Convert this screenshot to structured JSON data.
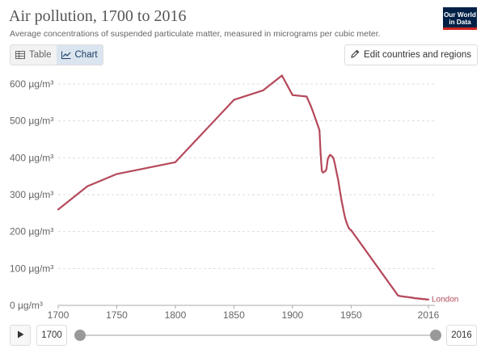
{
  "header": {
    "title": "Air pollution, 1700 to 2016",
    "subtitle": "Average concentrations of suspended particulate matter, measured in micrograms per cubic meter.",
    "logo_line1": "Our World",
    "logo_line2": "in Data"
  },
  "tabs": [
    {
      "label": "Table",
      "icon": "table-icon",
      "active": false
    },
    {
      "label": "Chart",
      "icon": "line-chart-icon",
      "active": true
    }
  ],
  "edit_button": {
    "label": "Edit countries and regions",
    "icon": "pencil-icon"
  },
  "timeline": {
    "start_year": "1700",
    "end_year": "2016",
    "play_icon": "play-icon"
  },
  "colors": {
    "series": "#b5495b",
    "grid": "#dddddd",
    "axis_text": "#666666"
  },
  "chart_data": {
    "type": "line",
    "title": "Air pollution, 1700 to 2016",
    "xlabel": "",
    "ylabel": "",
    "xlim": [
      1700,
      2016
    ],
    "ylim": [
      0,
      600
    ],
    "y_ticks": [
      {
        "value": 0,
        "label": "0 µg/m³"
      },
      {
        "value": 100,
        "label": "100 µg/m³"
      },
      {
        "value": 200,
        "label": "200 µg/m³"
      },
      {
        "value": 300,
        "label": "300 µg/m³"
      },
      {
        "value": 400,
        "label": "400 µg/m³"
      },
      {
        "value": 500,
        "label": "500 µg/m³"
      },
      {
        "value": 600,
        "label": "600 µg/m³"
      }
    ],
    "x_ticks": [
      {
        "value": 1700,
        "label": "1700"
      },
      {
        "value": 1750,
        "label": "1750"
      },
      {
        "value": 1800,
        "label": "1800"
      },
      {
        "value": 1850,
        "label": "1850"
      },
      {
        "value": 1900,
        "label": "1900"
      },
      {
        "value": 1950,
        "label": "1950"
      },
      {
        "value": 2016,
        "label": "2016"
      }
    ],
    "grid": true,
    "series": [
      {
        "name": "London",
        "color": "#b5495b",
        "x": [
          1700,
          1725,
          1750,
          1800,
          1850,
          1875,
          1891,
          1900,
          1912,
          1913,
          1914,
          1915,
          1916,
          1917,
          1918,
          1919,
          1920,
          1921,
          1922,
          1923,
          1924,
          1925,
          1926,
          1927,
          1928,
          1929,
          1930,
          1931,
          1932,
          1933,
          1934,
          1935,
          1936,
          1937,
          1938,
          1939,
          1940,
          1941,
          1942,
          1943,
          1944,
          1945,
          1946,
          1947,
          1948,
          1949,
          1950,
          1990,
          1991,
          1992,
          1993,
          1994,
          1995,
          1996,
          1997,
          1998,
          1999,
          2000,
          2001,
          2002,
          2003,
          2004,
          2005,
          2006,
          2007,
          2008,
          2009,
          2010,
          2011,
          2012,
          2013,
          2014,
          2015,
          2016
        ],
        "y": [
          260,
          323,
          356,
          388,
          557,
          583,
          623,
          570,
          566,
          559,
          552,
          545,
          537,
          529,
          520,
          511,
          502,
          493,
          484,
          475,
          410,
          365,
          360,
          362,
          364,
          370,
          395,
          403,
          408,
          406,
          403,
          398,
          385,
          370,
          355,
          340,
          320,
          300,
          282,
          266,
          250,
          236,
          226,
          217,
          210,
          206,
          204,
          27,
          26,
          25,
          25,
          24,
          24,
          23,
          23,
          23,
          22,
          22,
          21,
          21,
          20,
          20,
          19,
          19,
          19,
          18,
          18,
          18,
          17,
          17,
          17,
          16,
          16,
          16
        ]
      }
    ]
  }
}
